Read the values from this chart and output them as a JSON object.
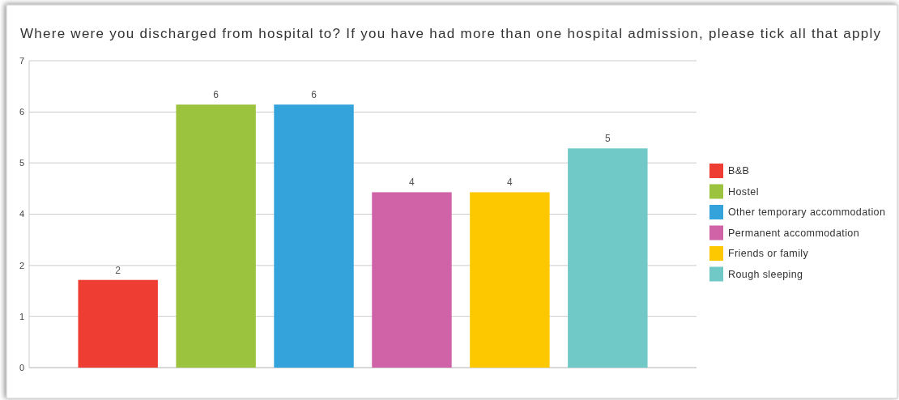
{
  "chart_data": {
    "type": "bar",
    "title": "Where were you discharged from hospital to? If you have had more than one hospital admission, please tick all that apply",
    "categories": [
      null
    ],
    "series": [
      {
        "name": "B&B",
        "color": "#ee3e33",
        "values": [
          2
        ]
      },
      {
        "name": "Hostel",
        "color": "#9bc33e",
        "values": [
          6
        ]
      },
      {
        "name": "Other temporary accommodation",
        "color": "#34a3dc",
        "values": [
          6
        ]
      },
      {
        "name": "Permanent accommodation",
        "color": "#d062a7",
        "values": [
          4
        ]
      },
      {
        "name": "Friends or family",
        "color": "#fdc800",
        "values": [
          4
        ]
      },
      {
        "name": "Rough sleeping",
        "color": "#70c9c6",
        "values": [
          5
        ]
      }
    ],
    "ylim": [
      0,
      7
    ],
    "yticks": [
      0,
      {
        "value": 1.17,
        "label": "1"
      },
      {
        "value": 2.33,
        "label": "2"
      },
      {
        "value": 3.5,
        "label": "4"
      },
      {
        "value": 4.67,
        "label": "5"
      },
      {
        "value": 5.83,
        "label": "6"
      },
      7
    ],
    "grid": "y",
    "legend": "right",
    "tick_labels": "y",
    "data_labels": true
  }
}
